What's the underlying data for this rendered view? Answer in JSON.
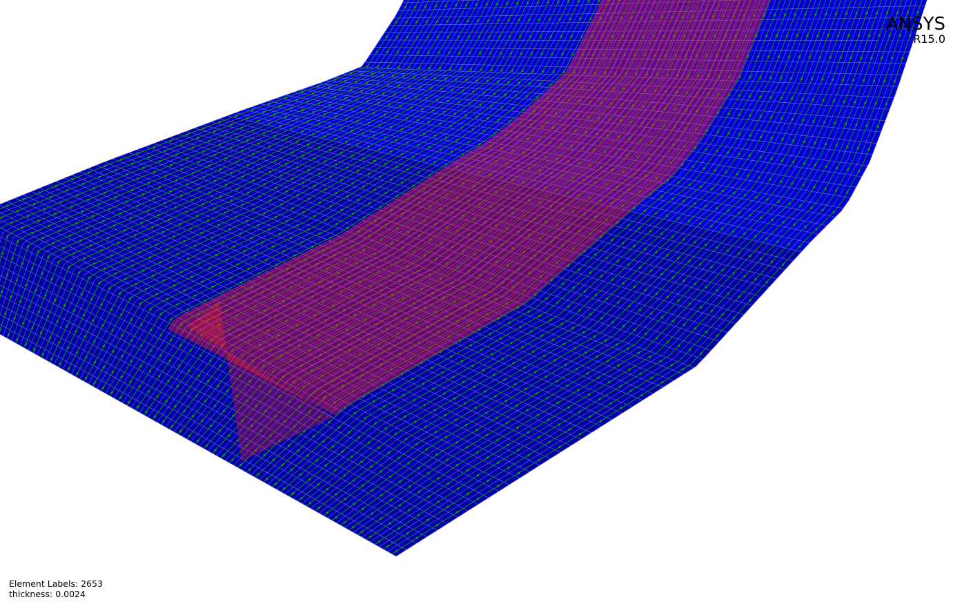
{
  "viewport": {
    "model": "shell-mesh-with-fiber-directions",
    "colors": {
      "background": "#ffffff",
      "shell_fill": "#0000a8",
      "shell_fill_top": "#0000e0",
      "mesh_lines": "#8f8fd0",
      "direction_arrows": "#119a11",
      "ply_region": "#ff2020",
      "ply_lines": "#ff3060"
    }
  },
  "branding": {
    "logo": "ANSYS",
    "version": "R15.0"
  },
  "info": {
    "element_labels": "Element Labels: 2653",
    "thickness": "thickness: 0.0024"
  }
}
